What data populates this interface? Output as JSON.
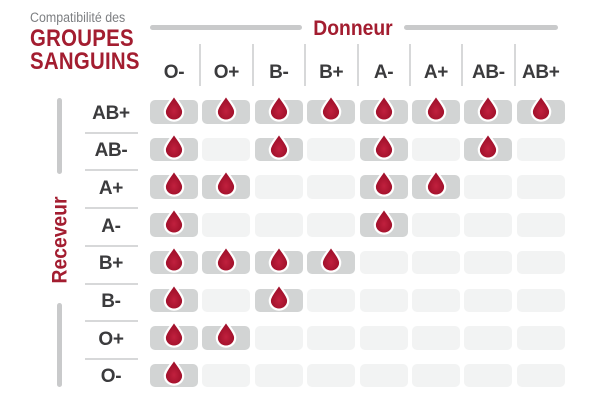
{
  "title": {
    "eyebrow": "Compatibilité des",
    "line1": "GROUPES",
    "line2": "SANGUINS"
  },
  "axes": {
    "donor": "Donneur",
    "receiver": "Receveur"
  },
  "chart_data": {
    "type": "heatmap",
    "title": "Compatibilité des GROUPES SANGUINS",
    "x_axis_label": "Donneur",
    "y_axis_label": "Receveur",
    "columns": [
      "O-",
      "O+",
      "B-",
      "B+",
      "A-",
      "A+",
      "AB-",
      "AB+"
    ],
    "rows": [
      "AB+",
      "AB-",
      "A+",
      "A-",
      "B+",
      "B-",
      "O+",
      "O-"
    ],
    "values": [
      [
        1,
        1,
        1,
        1,
        1,
        1,
        1,
        1
      ],
      [
        1,
        0,
        1,
        0,
        1,
        0,
        1,
        0
      ],
      [
        1,
        1,
        0,
        0,
        1,
        1,
        0,
        0
      ],
      [
        1,
        0,
        0,
        0,
        1,
        0,
        0,
        0
      ],
      [
        1,
        1,
        1,
        1,
        0,
        0,
        0,
        0
      ],
      [
        1,
        0,
        1,
        0,
        0,
        0,
        0,
        0
      ],
      [
        1,
        1,
        0,
        0,
        0,
        0,
        0,
        0
      ],
      [
        1,
        0,
        0,
        0,
        0,
        0,
        0,
        0
      ]
    ],
    "cell_marker": "blood-drop-icon",
    "legend_position": "none",
    "grid": false
  },
  "colors": {
    "accent_red": "#A31D30",
    "drop_red": "#A8142F",
    "cell_on": "#D2D4D4",
    "cell_off": "#F2F3F3",
    "rule_gray": "#C9CACB",
    "divider_gray": "#D7D8D9",
    "label_dark": "#3B3B3D",
    "eyebrow_gray": "#7D7F82"
  }
}
